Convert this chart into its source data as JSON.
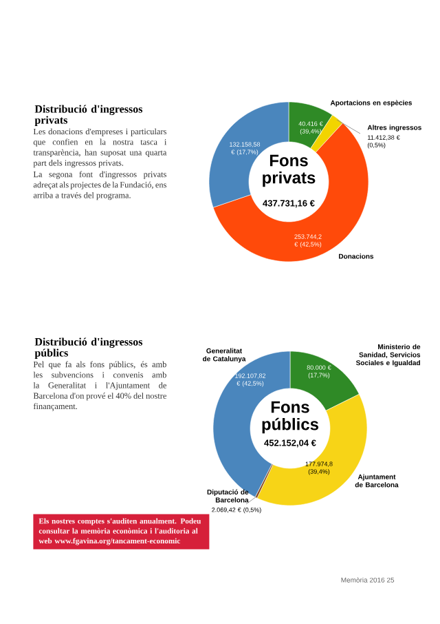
{
  "chart_data": [
    {
      "type": "donut",
      "title": "Distribució d'ingressos privats",
      "subtitle": "Fons privats",
      "annotations": [
        "Les donacions d'empreses i particulars que confien en la nostra tasca i transparència, han suposat una quarta part dels ingressos privats.",
        "La segona font d'ingressos privats adreçat als projectes de la Fundació, ens arriba a través del programa.",
        "437.731,16 €"
      ],
      "categories": [
        "Aportacions en espècies",
        "Altres ingressos",
        "Donacions",
        null
      ],
      "values": [
        40416,
        11412.38,
        253744.2,
        132158.58
      ],
      "colors": [
        "#2f8a26",
        "#f2d400",
        "#ff4a0a",
        "#4a86bd"
      ],
      "value_labels": [
        "40.416 € (39,4%)",
        "11.412,38 € (0,5%)",
        "253.744,2 € (42,5%)",
        "132.158,58 € (17,7%)"
      ]
    },
    {
      "type": "donut",
      "title": "Distribució d'ingressos públics",
      "subtitle": "Fons públics",
      "annotations": [
        "Pel que fa als fons públics, és amb les subvencions i convenis amb la Generalitat i l'Ajuntament de Barcelona d'on prové el 40% del nostre finançament.",
        "452.152,04 €",
        "Els nostres comptes s'auditen anualment. Podeu consultar la memòria econòmica i l'auditoria al web www.fgavina.org/tancament-economic",
        "Memòria 2016   25"
      ],
      "categories": [
        "Ministerio de Sanidad, Servicios Sociales e Igualdad",
        "Ajuntament de Barcelona",
        "Diputació de Barcelona",
        "Generalitat de Catalunya"
      ],
      "values": [
        80000,
        177974.8,
        2069.42,
        192107.82
      ],
      "colors": [
        "#2f8a26",
        "#f7d417",
        "#8b4a1a",
        "#4a86bd"
      ],
      "value_labels": [
        "80.000 € (17,7%)",
        "177.974,8 (39,4%)",
        "2.069,42 € (0,5%)",
        "192.107,82 € (42,5%)"
      ]
    }
  ]
}
